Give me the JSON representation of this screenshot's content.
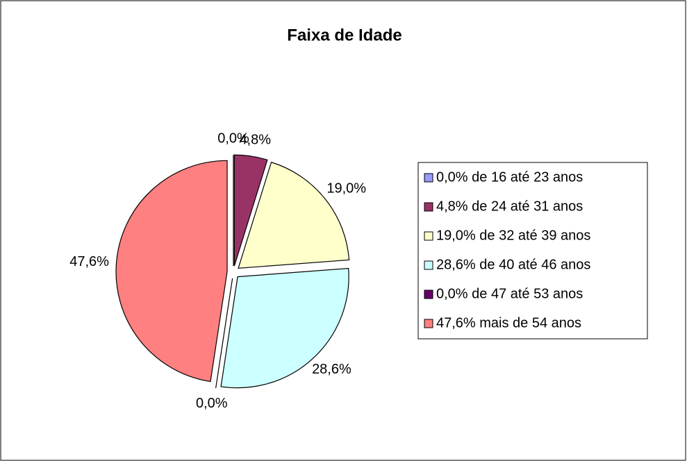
{
  "chart_data": {
    "type": "pie",
    "title": "Faixa de Idade",
    "categories": [
      "0,0% de 16 até 23 anos",
      "4,8% de 24 até 31 anos",
      "19,0% de 32 até 39 anos",
      "28,6% de 40 até 46 anos",
      "0,0% de 47 até 53 anos",
      "47,6% mais de 54 anos"
    ],
    "values": [
      0,
      4.8,
      19.0,
      28.6,
      0,
      47.6
    ],
    "value_labels": [
      "0,0%",
      "4,8%",
      "19,0%",
      "28,6%",
      "0,0%",
      "47,6%"
    ],
    "colors": [
      "#9999ff",
      "#993366",
      "#ffffcc",
      "#ccffff",
      "#660066",
      "#ff8080"
    ],
    "legend": "right"
  }
}
